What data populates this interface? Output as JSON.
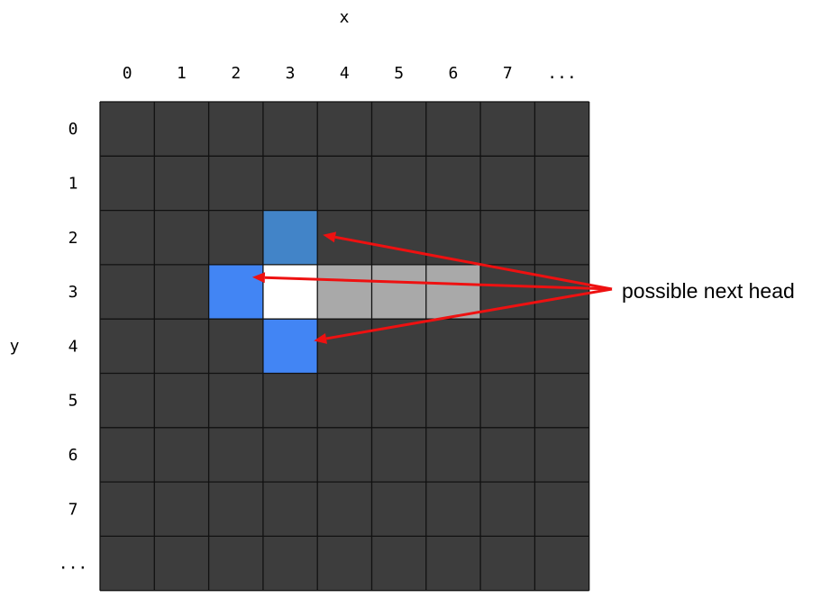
{
  "axes": {
    "x_label": "x",
    "y_label": "y",
    "x_ticks": [
      "0",
      "1",
      "2",
      "3",
      "4",
      "5",
      "6",
      "7",
      "..."
    ],
    "y_ticks": [
      "0",
      "1",
      "2",
      "3",
      "4",
      "5",
      "6",
      "7",
      "..."
    ]
  },
  "grid": {
    "columns": 9,
    "rows": 9,
    "background_color": "#3d3d3d",
    "line_color": "#111111"
  },
  "cells": [
    {
      "name": "cell-candidate-up",
      "x": 3,
      "y": 2,
      "color": "#4284c8"
    },
    {
      "name": "cell-candidate-left",
      "x": 2,
      "y": 3,
      "color": "#4285f4"
    },
    {
      "name": "cell-candidate-down",
      "x": 3,
      "y": 4,
      "color": "#4285f4"
    },
    {
      "name": "cell-snake-head",
      "x": 3,
      "y": 3,
      "color": "#ffffff"
    },
    {
      "name": "cell-snake-body",
      "x": 4,
      "y": 3,
      "color": "#a9a9a9"
    },
    {
      "name": "cell-snake-body",
      "x": 5,
      "y": 3,
      "color": "#a9a9a9"
    },
    {
      "name": "cell-snake-body",
      "x": 6,
      "y": 3,
      "color": "#a9a9a9"
    }
  ],
  "annotation": {
    "label": "possible next head",
    "arrow_color": "#ee1111",
    "targets": [
      {
        "x": 3,
        "y": 2
      },
      {
        "x": 2,
        "y": 3
      },
      {
        "x": 3,
        "y": 4
      }
    ]
  }
}
